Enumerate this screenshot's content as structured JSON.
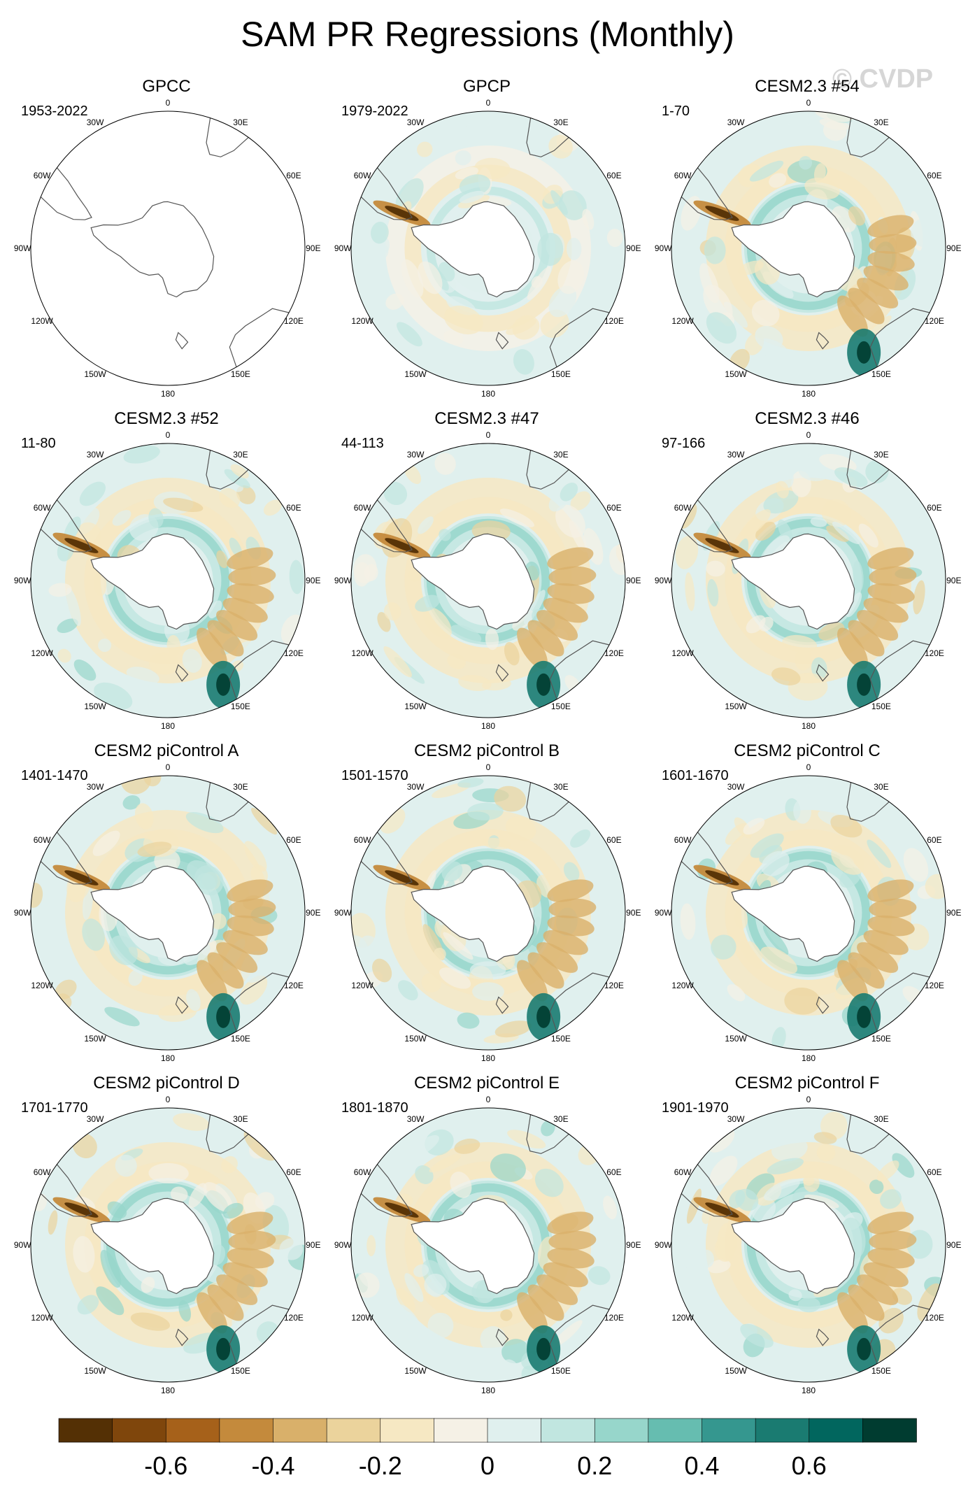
{
  "title": "SAM PR Regressions (Monthly)",
  "watermark": "© CVDP",
  "longitude_labels": [
    "0",
    "30E",
    "60E",
    "90E",
    "120E",
    "150E",
    "180",
    "150W",
    "120W",
    "90W",
    "60W",
    "30W"
  ],
  "panels": [
    {
      "title": "GPCC",
      "period": "1953-2022",
      "pattern": "gpcc"
    },
    {
      "title": "GPCP",
      "period": "1979-2022",
      "pattern": "obs"
    },
    {
      "title": "CESM2.3 #54",
      "period": "1-70",
      "pattern": "model"
    },
    {
      "title": "CESM2.3 #52",
      "period": "11-80",
      "pattern": "model"
    },
    {
      "title": "CESM2.3 #47",
      "period": "44-113",
      "pattern": "model"
    },
    {
      "title": "CESM2.3 #46",
      "period": "97-166",
      "pattern": "model"
    },
    {
      "title": "CESM2 piControl A",
      "period": "1401-1470",
      "pattern": "model"
    },
    {
      "title": "CESM2 piControl B",
      "period": "1501-1570",
      "pattern": "model"
    },
    {
      "title": "CESM2 piControl C",
      "period": "1601-1670",
      "pattern": "model"
    },
    {
      "title": "CESM2 piControl D",
      "period": "1701-1770",
      "pattern": "model"
    },
    {
      "title": "CESM2 piControl E",
      "period": "1801-1870",
      "pattern": "model"
    },
    {
      "title": "CESM2 piControl F",
      "period": "1901-1970",
      "pattern": "model"
    }
  ],
  "colorbar": {
    "colors": [
      "#543005",
      "#7f460c",
      "#a6611a",
      "#c48a3c",
      "#d9b06a",
      "#ebd39c",
      "#f6e8c3",
      "#f5f1e6",
      "#e0f0ee",
      "#c1e6e0",
      "#97d6cb",
      "#66bdb0",
      "#35978f",
      "#1a7b71",
      "#01665e",
      "#003c30"
    ],
    "tick_labels": [
      "-0.6",
      "-0.4",
      "-0.2",
      "0",
      "0.2",
      "0.4",
      "0.6"
    ],
    "tick_values": [
      -0.6,
      -0.4,
      -0.2,
      0,
      0.2,
      0.4,
      0.6
    ],
    "min": -0.8,
    "max": 0.8
  }
}
